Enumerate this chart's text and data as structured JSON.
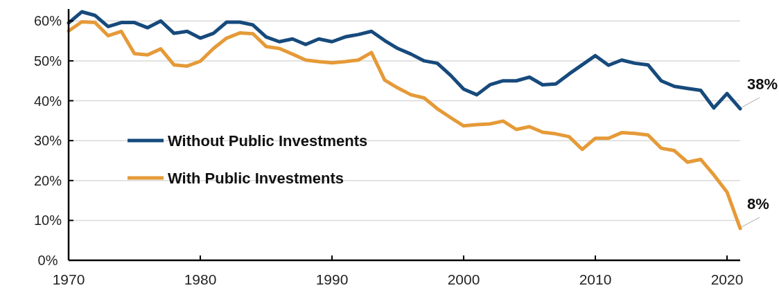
{
  "chart_data": {
    "type": "line",
    "x": [
      1970,
      1971,
      1972,
      1973,
      1974,
      1975,
      1976,
      1977,
      1978,
      1979,
      1980,
      1981,
      1982,
      1983,
      1984,
      1985,
      1986,
      1987,
      1988,
      1989,
      1990,
      1991,
      1992,
      1993,
      1994,
      1995,
      1996,
      1997,
      1998,
      1999,
      2000,
      2001,
      2002,
      2003,
      2004,
      2005,
      2006,
      2007,
      2008,
      2009,
      2010,
      2011,
      2012,
      2013,
      2014,
      2015,
      2016,
      2017,
      2018,
      2019,
      2020,
      2021
    ],
    "series": [
      {
        "name": "Without Public Investments",
        "color": "#174a7c",
        "values": [
          59.5,
          62.3,
          61.4,
          58.6,
          59.6,
          59.6,
          58.3,
          60,
          56.9,
          57.4,
          55.7,
          56.9,
          59.7,
          59.7,
          59,
          56,
          54.8,
          55.5,
          54.1,
          55.5,
          54.8,
          56,
          56.6,
          57.4,
          55.1,
          53.1,
          51.7,
          50,
          49.4,
          46.4,
          42.9,
          41.5,
          44,
          45,
          45,
          45.9,
          44,
          44.2,
          46.7,
          49,
          51.3,
          48.9,
          50.2,
          49.4,
          49,
          45,
          43.6,
          43.1,
          42.6,
          38.2,
          41.8,
          38
        ]
      },
      {
        "name": "With Public Investments",
        "color": "#e59a38",
        "values": [
          57.5,
          59.8,
          59.6,
          56.3,
          57.4,
          51.8,
          51.5,
          53,
          49,
          48.7,
          49.9,
          53.1,
          55.7,
          57,
          56.8,
          53.6,
          53.1,
          51.7,
          50.2,
          49.8,
          49.5,
          49.8,
          50.2,
          52.1,
          45.2,
          43.2,
          41.5,
          40.7,
          38,
          35.8,
          33.7,
          34,
          34.2,
          34.9,
          32.8,
          33.5,
          32.1,
          31.7,
          31,
          27.8,
          30.6,
          30.6,
          32,
          31.8,
          31.4,
          28.1,
          27.5,
          24.6,
          25.3,
          21.4,
          17.1,
          8
        ]
      }
    ],
    "xlim": [
      1970,
      2021
    ],
    "xticks": [
      1970,
      1980,
      1990,
      2000,
      2010,
      2020
    ],
    "ylim": [
      0,
      63
    ],
    "yticks": [
      {
        "value": 0,
        "label": "0%"
      },
      {
        "value": 10,
        "label": "10%"
      },
      {
        "value": 20,
        "label": "20%"
      },
      {
        "value": 30,
        "label": "30%"
      },
      {
        "value": 40,
        "label": "40%"
      },
      {
        "value": 50,
        "label": "50%"
      },
      {
        "value": 60,
        "label": "60%"
      }
    ],
    "grid": "y",
    "legend": "left",
    "marker": "none",
    "line_style": "solid",
    "annotations": [
      {
        "text": "38%",
        "x": 2021,
        "y": 38
      },
      {
        "text": "8%",
        "x": 2021,
        "y": 8
      }
    ]
  }
}
